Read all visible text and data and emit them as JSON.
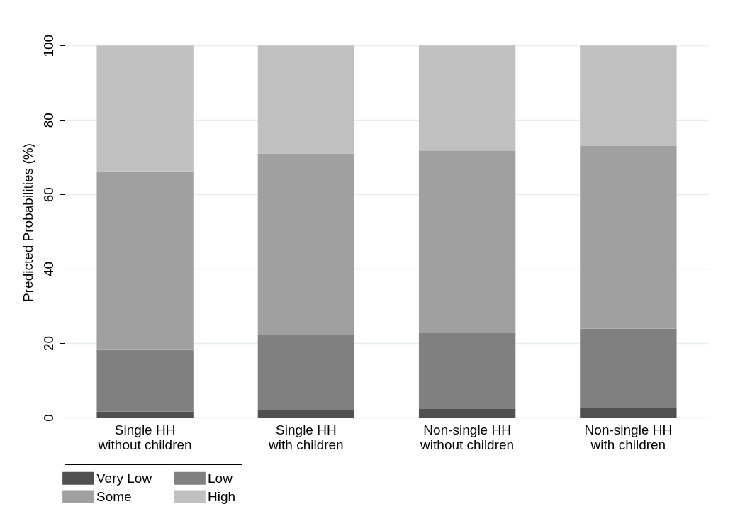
{
  "chart_data": {
    "type": "bar",
    "stacked": true,
    "ylabel": "Predicted Probabilities (%)",
    "categories": [
      "Single HH without children",
      "Single HH with children",
      "Non-single HH without children",
      "Non-single HH with children"
    ],
    "series": [
      {
        "name": "Very Low",
        "color": "#505050",
        "values": [
          1.6,
          2.1,
          2.3,
          2.6
        ]
      },
      {
        "name": "Low",
        "color": "#808080",
        "values": [
          16.6,
          20.0,
          20.4,
          21.3
        ]
      },
      {
        "name": "Some",
        "color": "#a0a0a0",
        "values": [
          48.0,
          48.9,
          49.1,
          49.1
        ]
      },
      {
        "name": "High",
        "color": "#c0c0c0",
        "values": [
          33.8,
          29.0,
          28.2,
          27.0
        ]
      }
    ],
    "ylim": [
      0,
      105
    ],
    "yticks": [
      0,
      20,
      40,
      60,
      80,
      100
    ],
    "grid": "y",
    "legend": "bottom"
  }
}
